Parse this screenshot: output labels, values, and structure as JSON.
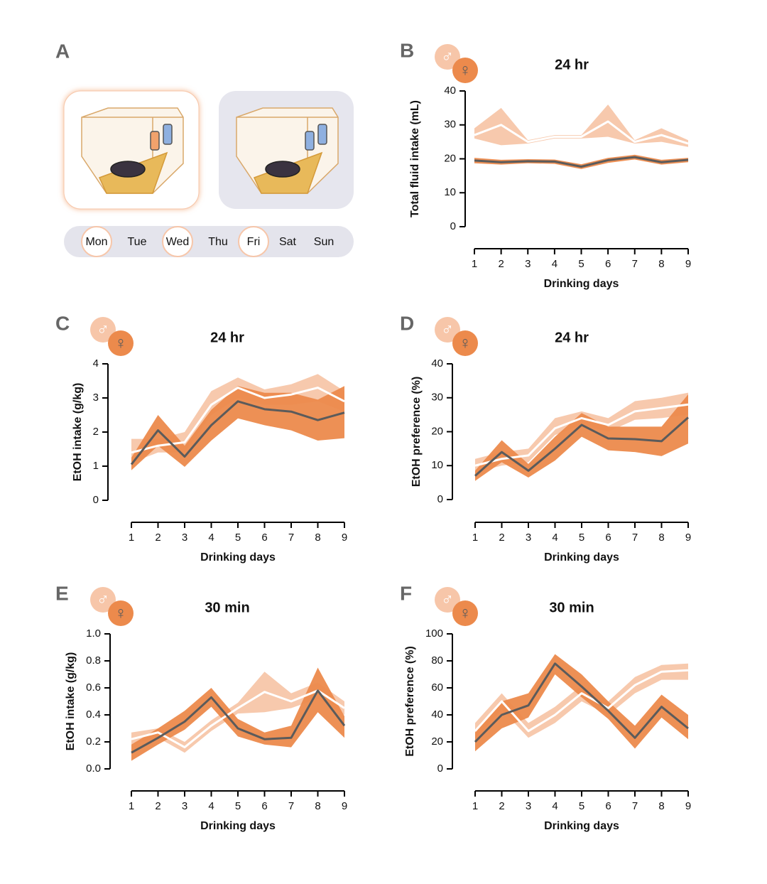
{
  "panel_a": {
    "label": "A",
    "days": [
      "Mon",
      "Tue",
      "Wed",
      "Thu",
      "Fri",
      "Sat",
      "Sun"
    ]
  },
  "chart_data": [
    {
      "type": "band-line",
      "panel": "B",
      "title": "24 hr",
      "xlabel": "Drinking days",
      "ylabel": "Total fluid intake (mL)",
      "x": [
        1,
        2,
        3,
        4,
        5,
        6,
        7,
        8,
        9
      ],
      "xlim": [
        1,
        9
      ],
      "xticks": [
        1,
        2,
        3,
        4,
        5,
        6,
        7,
        8,
        9
      ],
      "ylim": [
        0,
        40
      ],
      "yticks": [
        0,
        10,
        20,
        30,
        40
      ],
      "series": [
        {
          "name": "♂",
          "color": "#f7c6a9",
          "line_color": "#ffffff",
          "values": [
            27,
            30,
            25,
            26.5,
            26.5,
            31,
            25,
            27,
            24.5
          ],
          "lower": [
            26,
            24,
            24.5,
            26,
            26,
            26.5,
            24.5,
            25,
            23.5
          ],
          "upper": [
            29,
            35,
            25.5,
            27,
            27,
            36,
            25.5,
            29,
            25.5
          ]
        },
        {
          "name": "♀",
          "color": "#ec8a4c",
          "line_color": "#5b5b5b",
          "values": [
            19.5,
            19,
            19.3,
            19.2,
            17.7,
            19.6,
            20.5,
            19,
            19.7
          ],
          "lower": [
            18.7,
            18.3,
            18.7,
            18.5,
            17,
            18.8,
            19.8,
            18.3,
            19
          ],
          "upper": [
            20.3,
            19.7,
            19.9,
            19.8,
            18.4,
            20.3,
            21.2,
            19.7,
            20.3
          ]
        }
      ]
    },
    {
      "type": "band-line",
      "panel": "C",
      "title": "24 hr",
      "xlabel": "Drinking days",
      "ylabel": "EtOH intake (g/kg)",
      "x": [
        1,
        2,
        3,
        4,
        5,
        6,
        7,
        8,
        9
      ],
      "xlim": [
        1,
        9
      ],
      "xticks": [
        1,
        2,
        3,
        4,
        5,
        6,
        7,
        8,
        9
      ],
      "ylim": [
        0,
        4
      ],
      "yticks": [
        0,
        1,
        2,
        3,
        4
      ],
      "series": [
        {
          "name": "♂",
          "color": "#f7c6a9",
          "line_color": "#ffffff",
          "values": [
            1.4,
            1.6,
            1.7,
            2.8,
            3.3,
            3.0,
            3.1,
            3.3,
            2.9
          ],
          "lower": [
            1.1,
            1.4,
            1.4,
            2.5,
            3.0,
            2.8,
            2.8,
            2.9,
            2.6
          ],
          "upper": [
            1.8,
            1.8,
            2.0,
            3.2,
            3.6,
            3.25,
            3.4,
            3.7,
            3.2
          ]
        },
        {
          "name": "♀",
          "color": "#ec8a4c",
          "line_color": "#5b5b5b",
          "values": [
            1.05,
            2.05,
            1.28,
            2.2,
            2.9,
            2.67,
            2.6,
            2.35,
            2.57
          ],
          "lower": [
            0.88,
            1.6,
            0.98,
            1.75,
            2.4,
            2.2,
            2.05,
            1.75,
            1.82
          ],
          "upper": [
            1.25,
            2.5,
            1.6,
            2.65,
            3.35,
            3.15,
            3.15,
            2.95,
            3.35
          ]
        }
      ]
    },
    {
      "type": "band-line",
      "panel": "D",
      "title": "24 hr",
      "xlabel": "Drinking days",
      "ylabel": "EtOH preference (%)",
      "x": [
        1,
        2,
        3,
        4,
        5,
        6,
        7,
        8,
        9
      ],
      "xlim": [
        1,
        9
      ],
      "xticks": [
        1,
        2,
        3,
        4,
        5,
        6,
        7,
        8,
        9
      ],
      "ylim": [
        0,
        40
      ],
      "yticks": [
        0,
        10,
        20,
        30,
        40
      ],
      "series": [
        {
          "name": "♂",
          "color": "#f7c6a9",
          "line_color": "#ffffff",
          "values": [
            10,
            12,
            13,
            21,
            24,
            22,
            26,
            27,
            28
          ],
          "lower": [
            8,
            10,
            11,
            19,
            22,
            20,
            23.5,
            24,
            25
          ],
          "upper": [
            12,
            14,
            15,
            24,
            26,
            24,
            29,
            30,
            31.5
          ]
        },
        {
          "name": "♀",
          "color": "#ec8a4c",
          "line_color": "#5b5b5b",
          "values": [
            7,
            14,
            8.5,
            15,
            22,
            18,
            17.8,
            17.2,
            24.2
          ],
          "lower": [
            5.5,
            11,
            6.5,
            11.5,
            18.5,
            14.5,
            14,
            12.8,
            16.5
          ],
          "upper": [
            8.5,
            17.5,
            10.5,
            18.5,
            25.5,
            21.5,
            21.5,
            21.5,
            31
          ]
        }
      ]
    },
    {
      "type": "band-line",
      "panel": "E",
      "title": "30 min",
      "xlabel": "Drinking days",
      "ylabel": "EtOH intake (g/kg)",
      "x": [
        1,
        2,
        3,
        4,
        5,
        6,
        7,
        8,
        9
      ],
      "xlim": [
        1,
        9
      ],
      "xticks": [
        1,
        2,
        3,
        4,
        5,
        6,
        7,
        8,
        9
      ],
      "ylim": [
        0,
        1
      ],
      "yticks": [
        {
          "value": 0,
          "label": "0.0"
        },
        0.2,
        0.4,
        0.6,
        0.8,
        {
          "value": 1,
          "label": "1.0"
        }
      ],
      "series": [
        {
          "name": "♂",
          "color": "#f7c6a9",
          "line_color": "#ffffff",
          "values": [
            0.22,
            0.27,
            0.16,
            0.32,
            0.45,
            0.57,
            0.5,
            0.58,
            0.45
          ],
          "lower": [
            0.18,
            0.23,
            0.12,
            0.28,
            0.41,
            0.42,
            0.45,
            0.52,
            0.4
          ],
          "upper": [
            0.27,
            0.3,
            0.2,
            0.36,
            0.49,
            0.72,
            0.56,
            0.64,
            0.5
          ]
        },
        {
          "name": "♀",
          "color": "#ec8a4c",
          "line_color": "#5b5b5b",
          "values": [
            0.12,
            0.23,
            0.35,
            0.53,
            0.3,
            0.22,
            0.23,
            0.58,
            0.32
          ],
          "lower": [
            0.06,
            0.18,
            0.29,
            0.46,
            0.24,
            0.18,
            0.16,
            0.42,
            0.23
          ],
          "upper": [
            0.18,
            0.3,
            0.43,
            0.6,
            0.37,
            0.27,
            0.32,
            0.75,
            0.39
          ]
        }
      ]
    },
    {
      "type": "band-line",
      "panel": "F",
      "title": "30 min",
      "xlabel": "Drinking days",
      "ylabel": "EtOH preference (%)",
      "x": [
        1,
        2,
        3,
        4,
        5,
        6,
        7,
        8,
        9
      ],
      "xlim": [
        1,
        9
      ],
      "xticks": [
        1,
        2,
        3,
        4,
        5,
        6,
        7,
        8,
        9
      ],
      "ylim": [
        0,
        100
      ],
      "yticks": [
        0,
        20,
        40,
        60,
        80,
        100
      ],
      "series": [
        {
          "name": "♂",
          "color": "#f7c6a9",
          "line_color": "#ffffff",
          "values": [
            28,
            50,
            28,
            40,
            56,
            45,
            62,
            72,
            73
          ],
          "lower": [
            22,
            44,
            23,
            34,
            50,
            40,
            56,
            66,
            66
          ],
          "upper": [
            34,
            56,
            34,
            46,
            62,
            50,
            68,
            77,
            78
          ]
        },
        {
          "name": "♀",
          "color": "#ec8a4c",
          "line_color": "#5b5b5b",
          "values": [
            20,
            40,
            47,
            78,
            61,
            43,
            23,
            46,
            30
          ],
          "lower": [
            13,
            30,
            38,
            70,
            53,
            37,
            15,
            38,
            22
          ],
          "upper": [
            27,
            50,
            56,
            85,
            70,
            50,
            32,
            55,
            40
          ]
        }
      ]
    }
  ]
}
